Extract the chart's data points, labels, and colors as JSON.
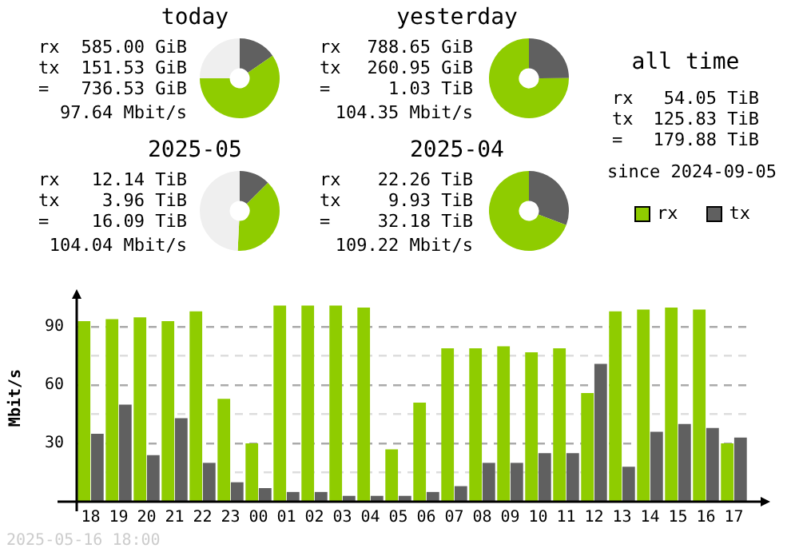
{
  "chart_data": [
    {
      "type": "donut",
      "title": "today",
      "categories": [
        null,
        null,
        null
      ],
      "values": [
        15.4,
        59.6,
        25
      ],
      "colors": [
        "#606060",
        "#8fcc00",
        "#efefef"
      ],
      "annotations": [
        "rx 585.00 GiB",
        "tx 151.53 GiB",
        "= 736.53 GiB",
        "97.64 Mbit/s"
      ]
    },
    {
      "type": "donut",
      "title": "yesterday",
      "categories": [
        null,
        null
      ],
      "values": [
        24.9,
        75.1
      ],
      "colors": [
        "#606060",
        "#8fcc00"
      ],
      "annotations": [
        "rx 788.65 GiB",
        "tx 260.95 GiB",
        "= 1.03 TiB",
        "104.35 Mbit/s"
      ]
    },
    {
      "type": "donut",
      "title": "2025-05",
      "categories": [
        null,
        null,
        null
      ],
      "values": [
        12.5,
        38.3,
        49.2
      ],
      "colors": [
        "#606060",
        "#8fcc00",
        "#efefef"
      ],
      "annotations": [
        "rx 12.14 TiB",
        "tx 3.96 TiB",
        "= 16.09 TiB",
        "104.04 Mbit/s"
      ]
    },
    {
      "type": "donut",
      "title": "2025-04",
      "categories": [
        null,
        null
      ],
      "values": [
        30.8,
        69.2
      ],
      "colors": [
        "#606060",
        "#8fcc00"
      ],
      "annotations": [
        "rx 22.26 TiB",
        "tx 9.93 TiB",
        "= 32.18 TiB",
        "109.22 Mbit/s"
      ]
    },
    {
      "type": "other",
      "title": "all time",
      "annotations": [
        "rx 54.05 TiB",
        "tx 125.83 TiB",
        "= 179.88 TiB",
        "since 2024-09-05"
      ]
    },
    {
      "type": "bar",
      "ylabel": "Mbit/s",
      "categories": [
        "18",
        "19",
        "20",
        "21",
        "22",
        "23",
        "00",
        "01",
        "02",
        "03",
        "04",
        "05",
        "06",
        "07",
        "08",
        "09",
        "10",
        "11",
        "12",
        "13",
        "14",
        "15",
        "16",
        "17"
      ],
      "series": [
        {
          "name": "rx",
          "color": "#8fcc00",
          "values": [
            93,
            94,
            95,
            93,
            98,
            53,
            30,
            101,
            101,
            101,
            100,
            27,
            51,
            79,
            79,
            80,
            77,
            79,
            56,
            98,
            99,
            100,
            99,
            30
          ]
        },
        {
          "name": "tx",
          "color": "#606060",
          "values": [
            35,
            50,
            24,
            43,
            20,
            10,
            7,
            5,
            5,
            3,
            3,
            3,
            5,
            8,
            20,
            20,
            25,
            25,
            71,
            18,
            36,
            40,
            38,
            33
          ]
        }
      ],
      "ylim": [
        0,
        107
      ],
      "yticks": [
        {
          "value": 15,
          "label": null
        },
        30,
        {
          "value": 45,
          "label": null
        },
        60,
        {
          "value": 75,
          "label": null
        },
        90
      ],
      "grid": "y",
      "line_style": "dashed",
      "legend": "top right",
      "annotations": [
        "2025-05-16 18:00"
      ]
    }
  ]
}
